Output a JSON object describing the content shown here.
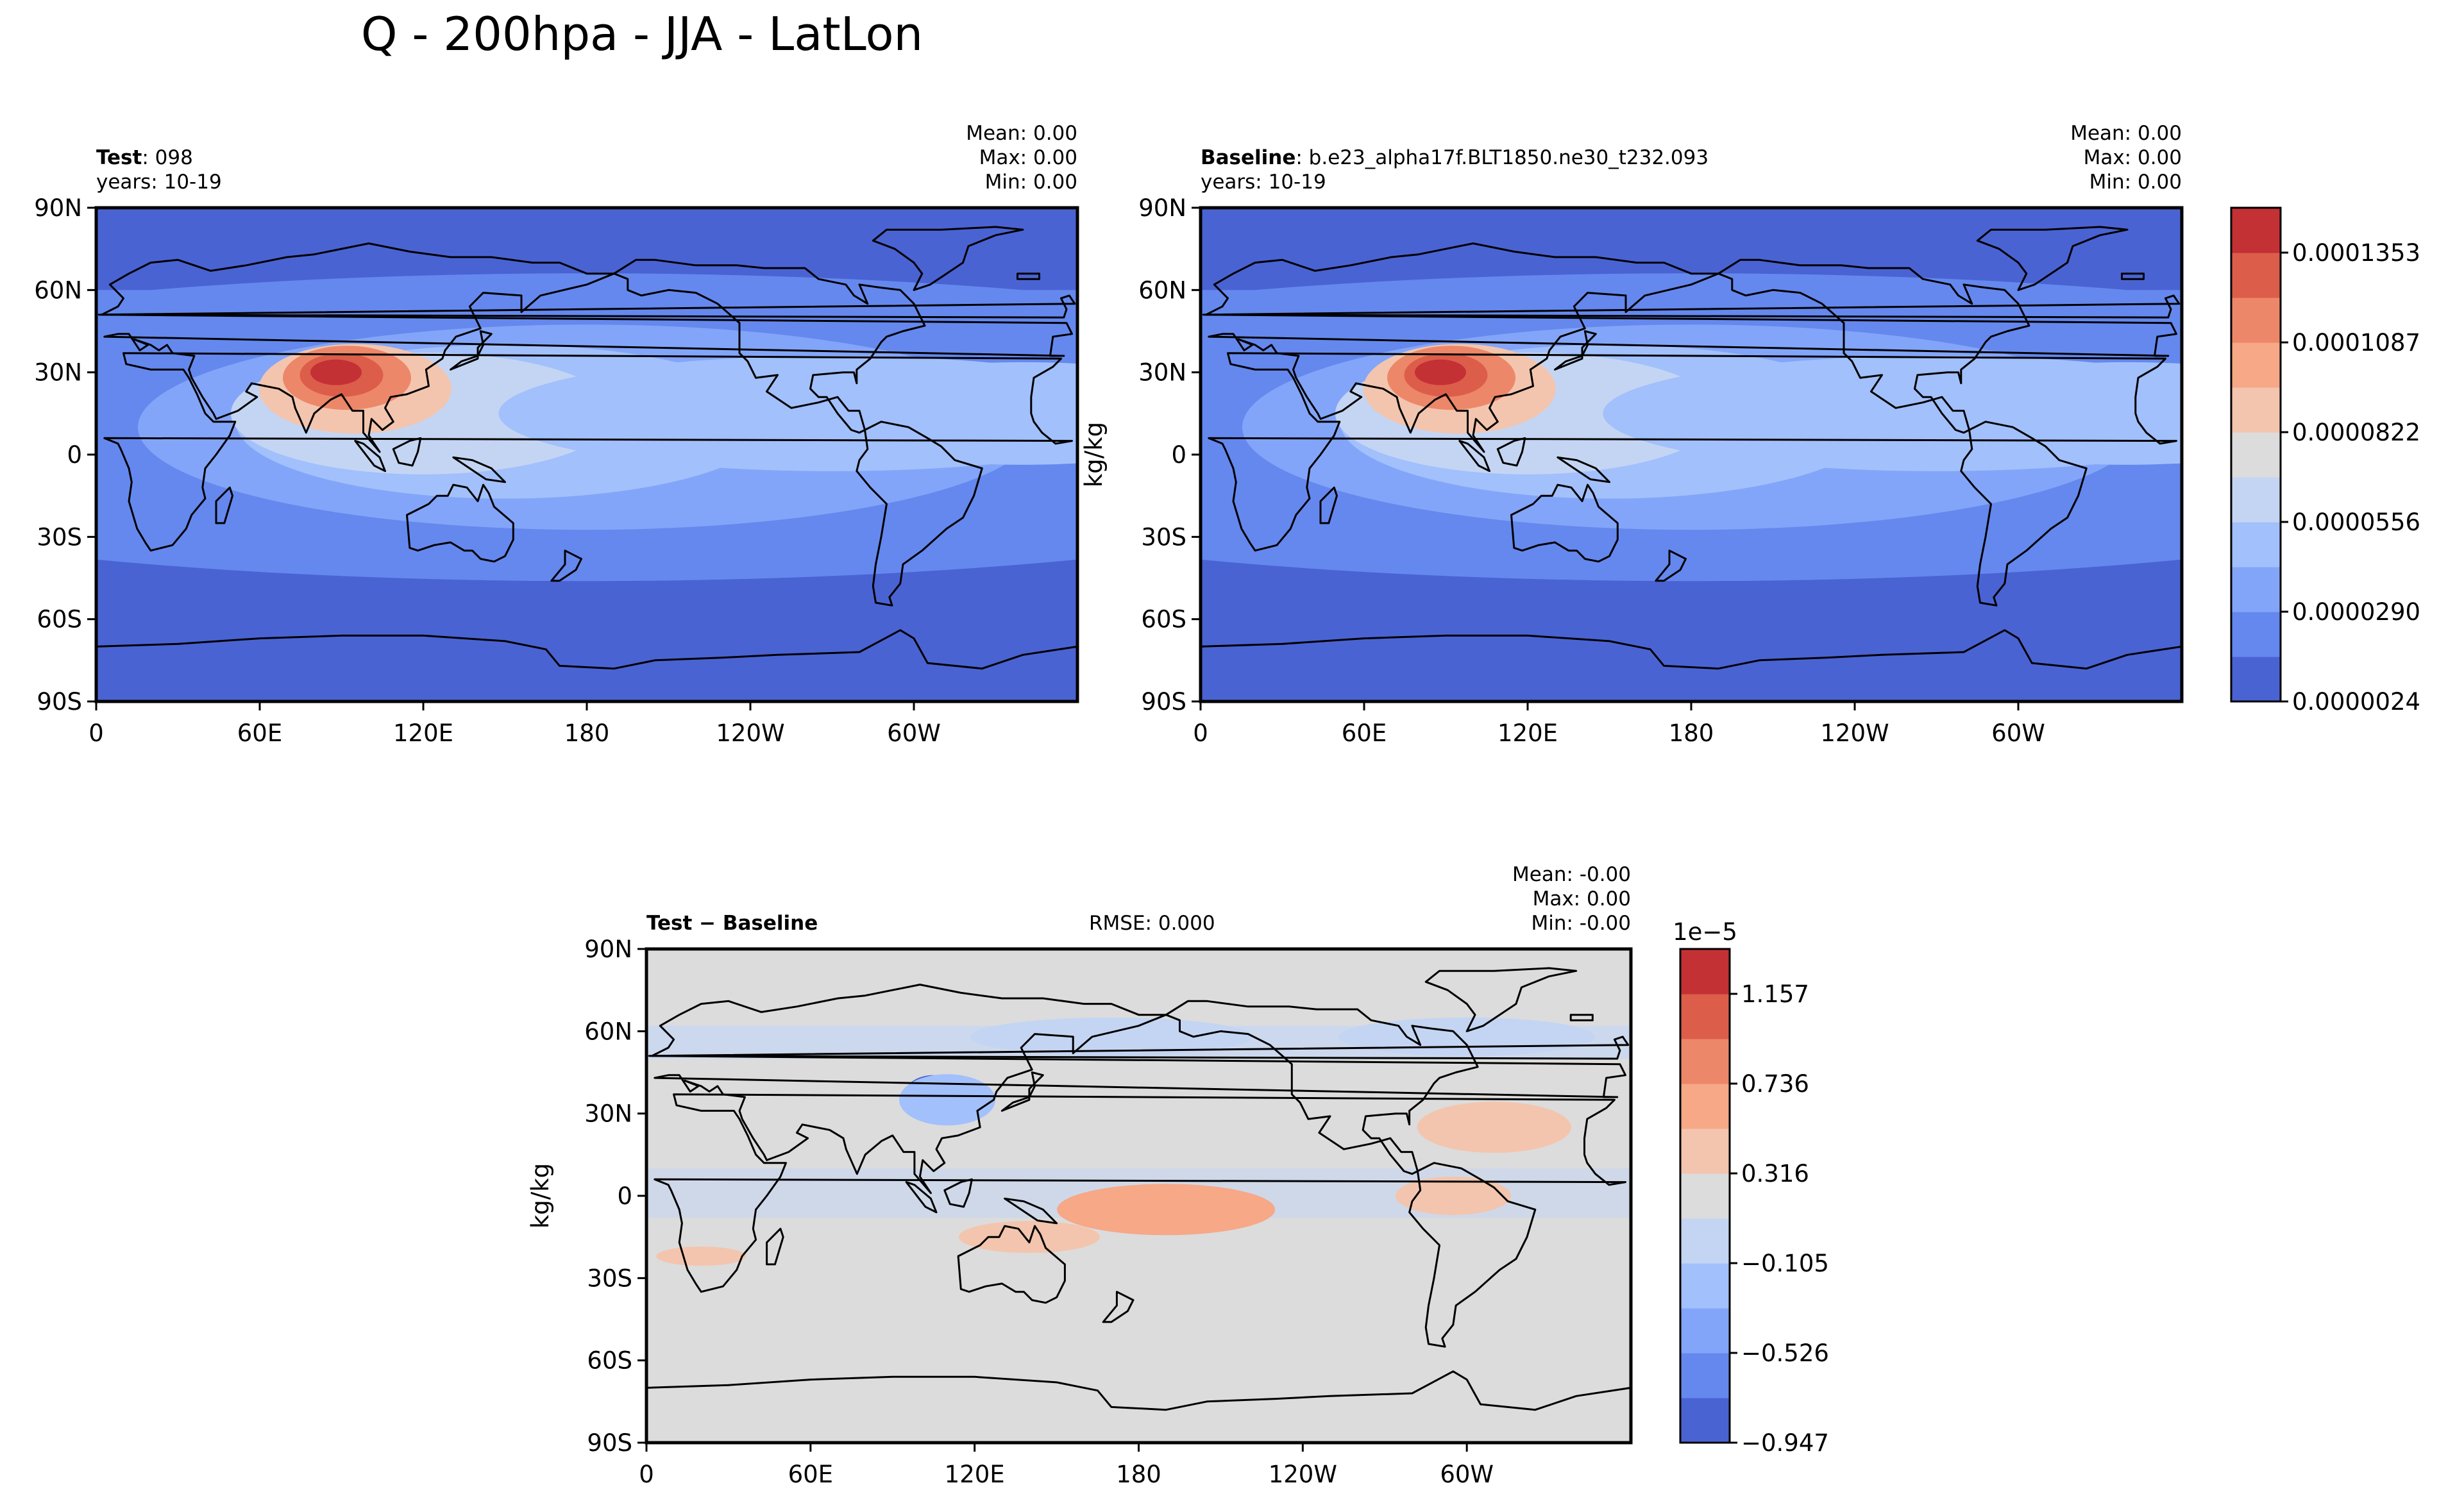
{
  "figure": {
    "title": "Q - 200hpa - JJA - LatLon"
  },
  "panels": [
    {
      "id": "test",
      "label_bold": "Test",
      "label_rest": ": 098",
      "years": "years: 10-19",
      "stats": [
        "Mean:  0.00",
        "Max:  0.00",
        "Min:  0.00"
      ],
      "rmse": ""
    },
    {
      "id": "baseline",
      "label_bold": "Baseline",
      "label_rest": ": b.e23_alpha17f.BLT1850.ne30_t232.093",
      "years": "years: 10-19",
      "stats": [
        "Mean:  0.00",
        "Max:  0.00",
        "Min:  0.00"
      ],
      "rmse": ""
    },
    {
      "id": "diff",
      "label_bold": "Test − Baseline",
      "label_rest": "",
      "years": "",
      "stats": [
        "Mean: -0.00",
        "Max:  0.00",
        "Min: -0.00"
      ],
      "rmse": "RMSE: 0.000"
    }
  ],
  "colorbars": [
    {
      "id": "top",
      "ylabel": "kg/kg",
      "exponent": "",
      "tick_labels": [
        "0.0000024",
        "0.0000290",
        "0.0000556",
        "0.0000822",
        "0.0001087",
        "0.0001353"
      ],
      "colors": [
        "#4a63d3",
        "#6588ee",
        "#83a5f9",
        "#a2c0fb",
        "#c4d5f3",
        "#dcdcdc",
        "#f3c5ae",
        "#f6a887",
        "#ed8769",
        "#dd5d4b",
        "#c33134"
      ]
    },
    {
      "id": "diff",
      "ylabel": "kg/kg",
      "exponent": "1e−5",
      "tick_labels": [
        "−0.947",
        "−0.526",
        "−0.105",
        "0.316",
        "0.736",
        "1.157"
      ],
      "colors": [
        "#4a63d3",
        "#6588ee",
        "#83a5f9",
        "#a2c0fb",
        "#c4d5f3",
        "#dcdcdc",
        "#f3c5ae",
        "#f6a887",
        "#ed8769",
        "#dd5d4b",
        "#c33134"
      ]
    }
  ],
  "axes": {
    "x_ticks": [
      "0",
      "60E",
      "120E",
      "180",
      "120W",
      "60W"
    ],
    "y_ticks": [
      "90N",
      "60N",
      "30N",
      "0",
      "30S",
      "60S",
      "90S"
    ]
  },
  "chart_data": [
    {
      "type": "heatmap",
      "panel": "Test",
      "variable": "Q",
      "units": "kg/kg",
      "x_range": [
        0,
        360
      ],
      "y_range": [
        -90,
        90
      ],
      "levels": [
        2.4e-06,
        1.57e-05,
        2.9e-05,
        4.23e-05,
        5.56e-05,
        6.89e-05,
        8.22e-05,
        9.55e-05,
        0.0001087,
        0.000122,
        0.0001353,
        0.0001486
      ],
      "blobs": [
        {
          "lon": 180,
          "lat": 10,
          "value": 2.6e-05
        },
        {
          "lon": 180,
          "lat": 10,
          "value": 4e-05
        },
        {
          "lon": 150,
          "lat": 12,
          "value": 5.5e-05
        },
        {
          "lon": 120,
          "lat": 15,
          "value": 6.8e-05
        },
        {
          "lon": 95,
          "lat": 24,
          "value": 9e-05
        },
        {
          "lon": 92,
          "lat": 28,
          "value": 0.00011
        },
        {
          "lon": 90,
          "lat": 29,
          "value": 0.000125
        },
        {
          "lon": 88,
          "lat": 30,
          "value": 0.000145
        },
        {
          "lon": 270,
          "lat": 15,
          "value": 5.2e-05
        },
        {
          "lon": 340,
          "lat": 15,
          "value": 4.5e-05
        }
      ],
      "stats": {
        "mean": 0.0,
        "max": 0.0,
        "min": 0.0
      }
    },
    {
      "type": "heatmap",
      "panel": "Baseline",
      "variable": "Q",
      "units": "kg/kg",
      "x_range": [
        0,
        360
      ],
      "y_range": [
        -90,
        90
      ],
      "levels": [
        2.4e-06,
        1.57e-05,
        2.9e-05,
        4.23e-05,
        5.56e-05,
        6.89e-05,
        8.22e-05,
        9.55e-05,
        0.0001087,
        0.000122,
        0.0001353,
        0.0001486
      ],
      "blobs": [
        {
          "lon": 180,
          "lat": 10,
          "value": 2.6e-05
        },
        {
          "lon": 180,
          "lat": 10,
          "value": 4e-05
        },
        {
          "lon": 150,
          "lat": 12,
          "value": 5.5e-05
        },
        {
          "lon": 120,
          "lat": 15,
          "value": 6.8e-05
        },
        {
          "lon": 95,
          "lat": 24,
          "value": 9e-05
        },
        {
          "lon": 92,
          "lat": 28,
          "value": 0.000112
        },
        {
          "lon": 90,
          "lat": 29,
          "value": 0.000128
        },
        {
          "lon": 88,
          "lat": 30,
          "value": 0.000148
        },
        {
          "lon": 270,
          "lat": 15,
          "value": 5.2e-05
        },
        {
          "lon": 340,
          "lat": 15,
          "value": 4.5e-05
        }
      ],
      "stats": {
        "mean": 0.0,
        "max": 0.0,
        "min": 0.0
      }
    },
    {
      "type": "heatmap",
      "panel": "Test − Baseline",
      "variable": "Q",
      "units": "kg/kg",
      "scale": "1e-5",
      "x_range": [
        0,
        360
      ],
      "y_range": [
        -90,
        90
      ],
      "levels": [
        -1.157,
        -0.947,
        -0.736,
        -0.526,
        -0.316,
        -0.105,
        0.105,
        0.316,
        0.526,
        0.736,
        0.947,
        1.157
      ],
      "blobs": [
        {
          "lon": 105,
          "lat": 37,
          "value": -1.0
        },
        {
          "lon": 105,
          "lat": 37,
          "value": -0.7
        },
        {
          "lon": 110,
          "lat": 35,
          "value": -0.5
        },
        {
          "lon": 170,
          "lat": 58,
          "value": -0.3
        },
        {
          "lon": 300,
          "lat": 58,
          "value": -0.3
        },
        {
          "lon": 190,
          "lat": -5,
          "value": 0.45
        },
        {
          "lon": 310,
          "lat": 25,
          "value": 0.3
        },
        {
          "lon": 295,
          "lat": 0,
          "value": 0.25
        },
        {
          "lon": 140,
          "lat": -15,
          "value": 0.25
        },
        {
          "lon": 20,
          "lat": -22,
          "value": 0.2
        }
      ],
      "rmse": 0.0,
      "stats": {
        "mean": -0.0,
        "max": 0.0,
        "min": -0.0
      }
    }
  ]
}
